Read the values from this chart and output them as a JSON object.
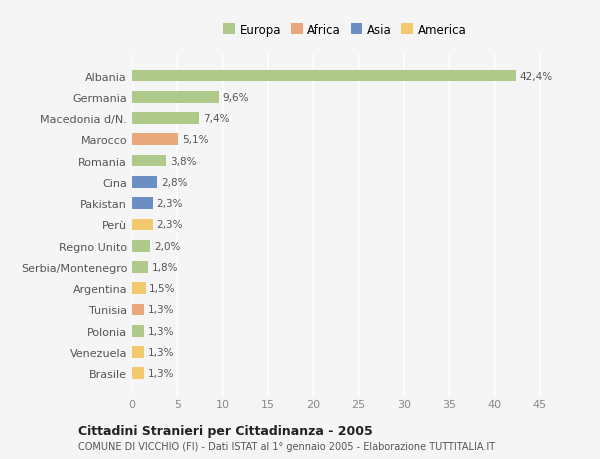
{
  "categories": [
    "Albania",
    "Germania",
    "Macedonia d/N.",
    "Marocco",
    "Romania",
    "Cina",
    "Pakistan",
    "Perù",
    "Regno Unito",
    "Serbia/Montenegro",
    "Argentina",
    "Tunisia",
    "Polonia",
    "Venezuela",
    "Brasile"
  ],
  "values": [
    42.4,
    9.6,
    7.4,
    5.1,
    3.8,
    2.8,
    2.3,
    2.3,
    2.0,
    1.8,
    1.5,
    1.3,
    1.3,
    1.3,
    1.3
  ],
  "labels": [
    "42,4%",
    "9,6%",
    "7,4%",
    "5,1%",
    "3,8%",
    "2,8%",
    "2,3%",
    "2,3%",
    "2,0%",
    "1,8%",
    "1,5%",
    "1,3%",
    "1,3%",
    "1,3%",
    "1,3%"
  ],
  "colors": [
    "#aec98a",
    "#aec98a",
    "#aec98a",
    "#e8a87c",
    "#aec98a",
    "#6b8fc2",
    "#6b8fc2",
    "#f2c96e",
    "#aec98a",
    "#aec98a",
    "#f2c96e",
    "#e8a87c",
    "#aec98a",
    "#f2c96e",
    "#f2c96e"
  ],
  "legend": {
    "Europa": "#aec98a",
    "Africa": "#e8a87c",
    "Asia": "#6b8fc2",
    "America": "#f2c96e"
  },
  "xlim": [
    0,
    47
  ],
  "xticks": [
    0,
    5,
    10,
    15,
    20,
    25,
    30,
    35,
    40,
    45
  ],
  "title": "Cittadini Stranieri per Cittadinanza - 2005",
  "subtitle": "COMUNE DI VICCHIO (FI) - Dati ISTAT al 1° gennaio 2005 - Elaborazione TUTTITALIA.IT",
  "background_color": "#f5f5f5",
  "grid_color": "#ffffff",
  "bar_height": 0.55
}
